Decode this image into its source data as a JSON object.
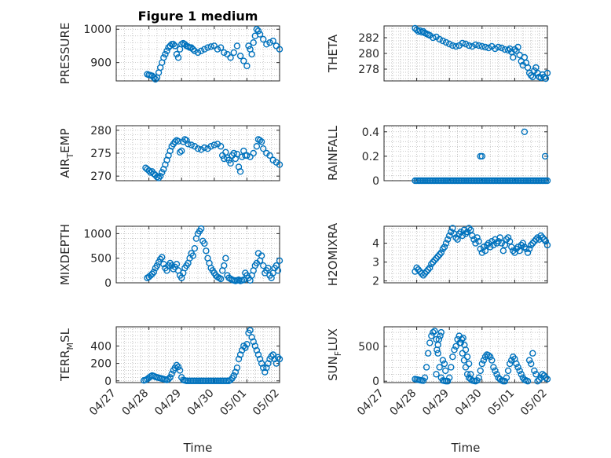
{
  "figure_title": "Figure 1 medium",
  "colors": {
    "marker": "#0072BD",
    "axes": "#262626",
    "grid": "#b0b0b0"
  },
  "chart_data": [
    {
      "type": "scatter",
      "title": "Figure 1 medium",
      "ylabel": "PRESSURE",
      "xlabel": "",
      "ylim": [
        845,
        1010
      ],
      "yticks": [
        900,
        1000
      ],
      "grid": true,
      "x": [
        0.95,
        1.0,
        1.05,
        1.1,
        1.15,
        1.2,
        1.25,
        1.3,
        1.35,
        1.4,
        1.45,
        1.5,
        1.55,
        1.6,
        1.65,
        1.7,
        1.75,
        1.8,
        1.85,
        1.9,
        1.95,
        2.0,
        2.05,
        2.1,
        2.15,
        2.2,
        2.25,
        2.3,
        2.35,
        2.4,
        2.5,
        2.6,
        2.7,
        2.8,
        2.9,
        3.0,
        3.1,
        3.2,
        3.3,
        3.4,
        3.5,
        3.6,
        3.7,
        3.8,
        3.9,
        4.0,
        4.05,
        4.1,
        4.15,
        4.2,
        4.25,
        4.3,
        4.35,
        4.4,
        4.5,
        4.6,
        4.7,
        4.8,
        4.9,
        5.0
      ],
      "y": [
        865,
        863,
        862,
        860,
        855,
        850,
        855,
        870,
        885,
        900,
        915,
        925,
        935,
        945,
        950,
        955,
        955,
        950,
        925,
        915,
        940,
        955,
        958,
        955,
        950,
        948,
        945,
        945,
        940,
        935,
        930,
        935,
        940,
        945,
        948,
        950,
        940,
        945,
        930,
        925,
        915,
        930,
        950,
        920,
        905,
        890,
        950,
        940,
        925,
        960,
        980,
        1000,
        995,
        985,
        970,
        955,
        960,
        965,
        950,
        940
      ]
    },
    {
      "type": "scatter",
      "title": "",
      "ylabel": "THETA",
      "xlabel": "",
      "ylim": [
        276.5,
        283.5
      ],
      "yticks": [
        278,
        280,
        282
      ],
      "grid": true,
      "x": [
        0.95,
        1.0,
        1.05,
        1.1,
        1.15,
        1.2,
        1.25,
        1.3,
        1.35,
        1.4,
        1.5,
        1.6,
        1.7,
        1.8,
        1.9,
        2.0,
        2.1,
        2.2,
        2.3,
        2.4,
        2.5,
        2.6,
        2.7,
        2.8,
        2.9,
        3.0,
        3.1,
        3.2,
        3.3,
        3.4,
        3.5,
        3.6,
        3.7,
        3.8,
        3.85,
        3.9,
        3.95,
        4.0,
        4.05,
        4.1,
        4.15,
        4.2,
        4.25,
        4.3,
        4.35,
        4.4,
        4.45,
        4.5,
        4.55,
        4.6,
        4.65,
        4.7,
        4.75,
        4.8,
        4.85,
        4.9,
        4.95,
        5.0
      ],
      "y": [
        283.2,
        283.0,
        282.8,
        282.9,
        282.7,
        282.8,
        282.6,
        282.5,
        282.4,
        282.3,
        282.0,
        282.1,
        281.8,
        281.6,
        281.4,
        281.2,
        281.0,
        280.9,
        281.0,
        281.3,
        281.2,
        281.0,
        280.9,
        281.1,
        281.0,
        280.9,
        280.8,
        280.7,
        280.9,
        280.6,
        280.8,
        280.7,
        280.5,
        280.4,
        280.6,
        280.2,
        279.5,
        280.5,
        280.3,
        280.8,
        279.8,
        279.0,
        278.5,
        279.5,
        278.8,
        278.2,
        277.5,
        277.2,
        277.0,
        277.8,
        278.2,
        277.5,
        277.0,
        276.9,
        277.3,
        277.0,
        276.8,
        277.5
      ]
    },
    {
      "type": "scatter",
      "title": "",
      "ylabel": "AIR_TEMP",
      "xlabel": "",
      "ylim": [
        269,
        281
      ],
      "yticks": [
        270,
        275,
        280
      ],
      "grid": true,
      "x": [
        0.9,
        0.95,
        1.0,
        1.05,
        1.1,
        1.15,
        1.2,
        1.25,
        1.3,
        1.35,
        1.4,
        1.45,
        1.5,
        1.55,
        1.6,
        1.65,
        1.7,
        1.75,
        1.8,
        1.85,
        1.9,
        1.95,
        2.0,
        2.05,
        2.1,
        2.15,
        2.2,
        2.3,
        2.4,
        2.5,
        2.6,
        2.7,
        2.8,
        2.9,
        3.0,
        3.1,
        3.2,
        3.25,
        3.3,
        3.35,
        3.4,
        3.45,
        3.5,
        3.55,
        3.6,
        3.65,
        3.7,
        3.75,
        3.8,
        3.85,
        3.9,
        3.95,
        4.0,
        4.1,
        4.2,
        4.3,
        4.35,
        4.4,
        4.45,
        4.5,
        4.6,
        4.7,
        4.8,
        4.9,
        5.0
      ],
      "y": [
        271.8,
        271.5,
        271.2,
        270.8,
        271.0,
        270.5,
        270.2,
        269.8,
        269.6,
        270.0,
        270.8,
        271.5,
        272.5,
        273.5,
        274.5,
        275.5,
        276.5,
        277.0,
        277.5,
        277.8,
        277.6,
        275.2,
        275.5,
        277.5,
        278.0,
        277.8,
        277.0,
        276.8,
        276.5,
        276.0,
        275.8,
        276.2,
        276.0,
        276.5,
        276.8,
        277.0,
        276.5,
        274.5,
        273.8,
        275.2,
        274.0,
        273.5,
        272.8,
        274.5,
        275.0,
        273.8,
        274.8,
        272.0,
        271.0,
        274.2,
        275.5,
        274.5,
        274.5,
        274.2,
        275.0,
        276.5,
        278.0,
        277.8,
        277.5,
        276.0,
        275.0,
        274.5,
        273.5,
        273.0,
        272.5
      ]
    },
    {
      "type": "scatter",
      "title": "",
      "ylabel": "RAINFALL",
      "xlabel": "",
      "ylim": [
        0,
        0.45
      ],
      "yticks": [
        0,
        0.2,
        0.4
      ],
      "grid": true,
      "x": [
        0.95,
        1.0,
        1.05,
        1.1,
        1.15,
        1.2,
        1.25,
        1.3,
        1.35,
        1.4,
        1.45,
        1.5,
        1.55,
        1.6,
        1.65,
        1.7,
        1.75,
        1.8,
        1.85,
        1.9,
        1.95,
        2.0,
        2.05,
        2.1,
        2.15,
        2.2,
        2.25,
        2.3,
        2.35,
        2.4,
        2.45,
        2.5,
        2.55,
        2.6,
        2.65,
        2.7,
        2.75,
        2.8,
        2.85,
        2.9,
        2.95,
        3.0,
        3.05,
        3.1,
        3.15,
        3.2,
        3.25,
        3.3,
        3.35,
        3.4,
        3.45,
        3.5,
        3.55,
        3.6,
        3.65,
        3.7,
        3.75,
        3.8,
        3.85,
        3.9,
        3.95,
        4.0,
        4.05,
        4.1,
        4.15,
        4.2,
        4.25,
        4.3,
        4.35,
        4.4,
        4.45,
        4.5,
        4.55,
        4.6,
        4.65,
        4.7,
        4.75,
        4.8,
        4.85,
        4.9,
        4.95,
        5.0,
        2.95,
        3.0,
        4.3,
        4.93
      ],
      "y": [
        0,
        0,
        0,
        0,
        0,
        0,
        0,
        0,
        0,
        0,
        0,
        0,
        0,
        0,
        0,
        0,
        0,
        0,
        0,
        0,
        0,
        0,
        0,
        0,
        0,
        0,
        0,
        0,
        0,
        0,
        0,
        0,
        0,
        0,
        0,
        0,
        0,
        0,
        0,
        0,
        0,
        0,
        0,
        0,
        0,
        0,
        0,
        0,
        0,
        0,
        0,
        0,
        0,
        0,
        0,
        0,
        0,
        0,
        0,
        0,
        0,
        0,
        0,
        0,
        0,
        0,
        0,
        0,
        0,
        0,
        0,
        0,
        0,
        0,
        0,
        0,
        0,
        0,
        0,
        0,
        0,
        0,
        0.2,
        0.2,
        0.4,
        0.2
      ]
    },
    {
      "type": "scatter",
      "title": "",
      "ylabel": "MIXDEPTH",
      "xlabel": "",
      "ylim": [
        0,
        1150
      ],
      "yticks": [
        0,
        500,
        1000
      ],
      "grid": true,
      "x": [
        0.95,
        1.0,
        1.05,
        1.1,
        1.15,
        1.2,
        1.25,
        1.3,
        1.35,
        1.4,
        1.45,
        1.5,
        1.55,
        1.6,
        1.65,
        1.7,
        1.75,
        1.8,
        1.85,
        1.9,
        1.95,
        2.0,
        2.05,
        2.1,
        2.15,
        2.2,
        2.25,
        2.3,
        2.35,
        2.4,
        2.45,
        2.5,
        2.55,
        2.6,
        2.65,
        2.7,
        2.75,
        2.8,
        2.85,
        2.9,
        2.95,
        3.0,
        3.05,
        3.1,
        3.15,
        3.2,
        3.25,
        3.3,
        3.35,
        3.4,
        3.45,
        3.5,
        3.55,
        3.6,
        3.65,
        3.7,
        3.75,
        3.8,
        3.85,
        3.9,
        3.95,
        4.0,
        4.05,
        4.1,
        4.15,
        4.2,
        4.25,
        4.3,
        4.35,
        4.4,
        4.45,
        4.5,
        4.55,
        4.6,
        4.65,
        4.7,
        4.75,
        4.8,
        4.85,
        4.9,
        4.95,
        5.0
      ],
      "y": [
        100,
        120,
        150,
        180,
        220,
        300,
        350,
        420,
        480,
        520,
        380,
        300,
        250,
        350,
        400,
        350,
        280,
        320,
        380,
        250,
        150,
        100,
        200,
        300,
        350,
        400,
        500,
        600,
        550,
        700,
        900,
        1000,
        1050,
        1100,
        850,
        800,
        650,
        500,
        400,
        300,
        250,
        200,
        150,
        120,
        100,
        80,
        250,
        350,
        500,
        150,
        100,
        80,
        60,
        50,
        40,
        50,
        60,
        40,
        50,
        60,
        200,
        150,
        100,
        50,
        150,
        250,
        350,
        400,
        600,
        450,
        550,
        350,
        200,
        250,
        300,
        150,
        100,
        200,
        300,
        350,
        250,
        450
      ]
    },
    {
      "type": "scatter",
      "title": "",
      "ylabel": "H2OMIXRA",
      "xlabel": "",
      "ylim": [
        1.9,
        4.9
      ],
      "yticks": [
        2,
        3,
        4
      ],
      "grid": true,
      "x": [
        0.95,
        1.0,
        1.05,
        1.1,
        1.15,
        1.2,
        1.25,
        1.3,
        1.35,
        1.4,
        1.45,
        1.5,
        1.55,
        1.6,
        1.65,
        1.7,
        1.75,
        1.8,
        1.85,
        1.9,
        1.95,
        2.0,
        2.05,
        2.1,
        2.15,
        2.2,
        2.25,
        2.3,
        2.35,
        2.4,
        2.45,
        2.5,
        2.55,
        2.6,
        2.65,
        2.7,
        2.75,
        2.8,
        2.85,
        2.9,
        2.95,
        3.0,
        3.05,
        3.1,
        3.15,
        3.2,
        3.25,
        3.3,
        3.35,
        3.4,
        3.45,
        3.5,
        3.55,
        3.6,
        3.65,
        3.7,
        3.75,
        3.8,
        3.85,
        3.9,
        3.95,
        4.0,
        4.05,
        4.1,
        4.15,
        4.2,
        4.25,
        4.3,
        4.35,
        4.4,
        4.45,
        4.5,
        4.55,
        4.6,
        4.65,
        4.7,
        4.75,
        4.8,
        4.85,
        4.9,
        4.95,
        5.0
      ],
      "y": [
        2.5,
        2.7,
        2.6,
        2.5,
        2.4,
        2.3,
        2.4,
        2.5,
        2.6,
        2.7,
        2.9,
        3.0,
        3.1,
        3.2,
        3.3,
        3.4,
        3.5,
        3.7,
        3.8,
        4.0,
        4.2,
        4.4,
        4.6,
        4.8,
        4.5,
        4.3,
        4.2,
        4.5,
        4.6,
        4.4,
        4.7,
        4.5,
        4.6,
        4.8,
        4.7,
        4.4,
        4.2,
        4.0,
        4.3,
        4.1,
        3.7,
        3.5,
        3.8,
        3.6,
        3.9,
        4.0,
        3.8,
        4.1,
        3.9,
        4.2,
        4.0,
        4.1,
        4.3,
        4.0,
        3.6,
        3.9,
        4.2,
        4.3,
        4.1,
        3.8,
        3.6,
        3.5,
        3.7,
        3.8,
        3.6,
        3.9,
        4.0,
        3.8,
        3.7,
        3.5,
        3.7,
        3.9,
        4.0,
        4.1,
        4.2,
        4.3,
        4.2,
        4.4,
        4.3,
        4.2,
        4.1,
        3.9
      ]
    },
    {
      "type": "scatter",
      "title": "",
      "ylabel": "TERR_MSL",
      "xlabel": "Time",
      "ylim": [
        -20,
        620
      ],
      "yticks": [
        0,
        200,
        400
      ],
      "grid": true,
      "xlim": [
        0,
        5
      ],
      "xtick_positions": [
        0,
        1,
        2,
        3,
        4,
        5
      ],
      "xticklabels": [
        "04/27",
        "04/28",
        "04/29",
        "04/30",
        "05/01",
        "05/02"
      ],
      "x": [
        0.85,
        0.9,
        0.95,
        1.0,
        1.05,
        1.1,
        1.15,
        1.2,
        1.25,
        1.3,
        1.35,
        1.4,
        1.45,
        1.5,
        1.55,
        1.6,
        1.65,
        1.7,
        1.75,
        1.8,
        1.85,
        1.9,
        1.95,
        2.0,
        2.05,
        2.1,
        2.15,
        2.2,
        2.25,
        2.3,
        2.35,
        2.4,
        2.45,
        2.5,
        2.55,
        2.6,
        2.65,
        2.7,
        2.75,
        2.8,
        2.85,
        2.9,
        2.95,
        3.0,
        3.05,
        3.1,
        3.15,
        3.2,
        3.25,
        3.3,
        3.35,
        3.4,
        3.45,
        3.5,
        3.55,
        3.6,
        3.65,
        3.7,
        3.75,
        3.8,
        3.85,
        3.9,
        3.95,
        4.0,
        4.05,
        4.1,
        4.15,
        4.2,
        4.25,
        4.3,
        4.35,
        4.4,
        4.45,
        4.5,
        4.55,
        4.6,
        4.65,
        4.7,
        4.75,
        4.8,
        4.85,
        4.9,
        4.95,
        5.0
      ],
      "y": [
        5,
        10,
        20,
        35,
        50,
        60,
        55,
        45,
        40,
        35,
        30,
        25,
        20,
        15,
        10,
        20,
        40,
        80,
        120,
        150,
        180,
        160,
        120,
        40,
        10,
        5,
        0,
        0,
        0,
        0,
        0,
        0,
        0,
        0,
        0,
        0,
        0,
        0,
        0,
        0,
        0,
        0,
        0,
        0,
        0,
        0,
        0,
        0,
        0,
        0,
        0,
        0,
        0,
        10,
        30,
        60,
        100,
        150,
        250,
        300,
        350,
        400,
        380,
        420,
        550,
        580,
        500,
        450,
        400,
        350,
        300,
        250,
        200,
        150,
        100,
        150,
        200,
        250,
        280,
        300,
        250,
        200,
        270,
        250
      ]
    },
    {
      "type": "scatter",
      "title": "",
      "ylabel": "SUN_FLUX",
      "xlabel": "Time",
      "ylim": [
        -20,
        780
      ],
      "yticks": [
        0,
        500
      ],
      "grid": true,
      "xlim": [
        0,
        5
      ],
      "xtick_positions": [
        0,
        1,
        2,
        3,
        4,
        5
      ],
      "xticklabels": [
        "04/27",
        "04/28",
        "04/29",
        "04/30",
        "05/01",
        "05/02"
      ],
      "x": [
        0.95,
        1.0,
        1.05,
        1.1,
        1.15,
        1.2,
        1.25,
        1.3,
        1.35,
        1.4,
        1.45,
        1.5,
        1.55,
        1.6,
        1.65,
        1.7,
        1.75,
        1.8,
        1.85,
        1.9,
        1.95,
        2.0,
        2.05,
        2.1,
        2.15,
        2.2,
        2.25,
        2.3,
        2.35,
        2.4,
        2.45,
        2.5,
        2.55,
        2.6,
        2.65,
        2.7,
        2.75,
        2.8,
        2.85,
        2.9,
        2.95,
        3.0,
        3.05,
        3.1,
        3.15,
        3.2,
        3.25,
        3.3,
        3.35,
        3.4,
        3.45,
        3.5,
        3.55,
        3.6,
        3.65,
        3.7,
        3.75,
        3.8,
        3.85,
        3.9,
        3.95,
        4.0,
        4.05,
        4.1,
        4.15,
        4.2,
        4.25,
        4.3,
        4.35,
        4.4,
        4.45,
        4.5,
        4.55,
        4.6,
        4.65,
        4.7,
        4.75,
        4.8,
        4.85,
        4.9,
        4.95,
        5.0,
        1.6,
        1.62,
        1.65,
        1.68,
        1.72,
        1.75,
        1.8,
        1.85,
        1.88,
        2.32,
        2.38,
        2.42,
        2.46,
        2.5,
        2.55,
        2.6,
        2.65
      ],
      "y": [
        30,
        25,
        20,
        15,
        10,
        8,
        50,
        200,
        400,
        550,
        650,
        700,
        720,
        600,
        400,
        200,
        50,
        10,
        5,
        0,
        0,
        50,
        200,
        350,
        450,
        500,
        600,
        650,
        550,
        400,
        300,
        200,
        100,
        50,
        30,
        10,
        5,
        0,
        10,
        50,
        150,
        250,
        300,
        350,
        380,
        370,
        350,
        300,
        200,
        150,
        100,
        50,
        30,
        10,
        0,
        0,
        50,
        150,
        250,
        300,
        350,
        320,
        250,
        200,
        150,
        100,
        50,
        20,
        10,
        0,
        300,
        250,
        400,
        150,
        100,
        0,
        20,
        50,
        100,
        80,
        50,
        30,
        100,
        450,
        520,
        600,
        650,
        700,
        300,
        250,
        150,
        550,
        600,
        620,
        520,
        450,
        350,
        250,
        100
      ]
    }
  ]
}
